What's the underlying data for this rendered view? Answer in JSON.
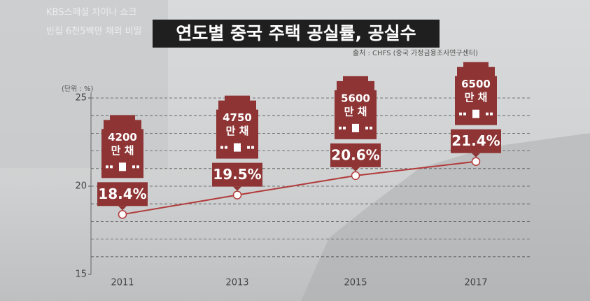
{
  "overlay": {
    "program": "KBS스페셜 차이나 쇼크",
    "episode": "빈집 6천5백만 채의 비밀"
  },
  "chart_data": {
    "type": "line",
    "title": "연도별 중국  주택 공실률, 공실수",
    "source": "출처 : CHFS (중국 가정금융조사연구센터)",
    "unit_label": "(단위 : %)",
    "categories": [
      "2011",
      "2013",
      "2015",
      "2017"
    ],
    "values": [
      18.4,
      19.5,
      20.6,
      21.4
    ],
    "value_labels": [
      "18.4%",
      "19.5%",
      "20.6%",
      "21.4%"
    ],
    "houses": [
      4200,
      4750,
      5600,
      6500
    ],
    "houses_unit": "만 채",
    "color": "#b23a3a",
    "label_color": "#8e3434",
    "ylim": [
      15,
      25
    ],
    "yticks": [
      15,
      20,
      25
    ],
    "minor_yticks": [
      16,
      17,
      18,
      19,
      21,
      22,
      23,
      24
    ],
    "grid": true
  }
}
